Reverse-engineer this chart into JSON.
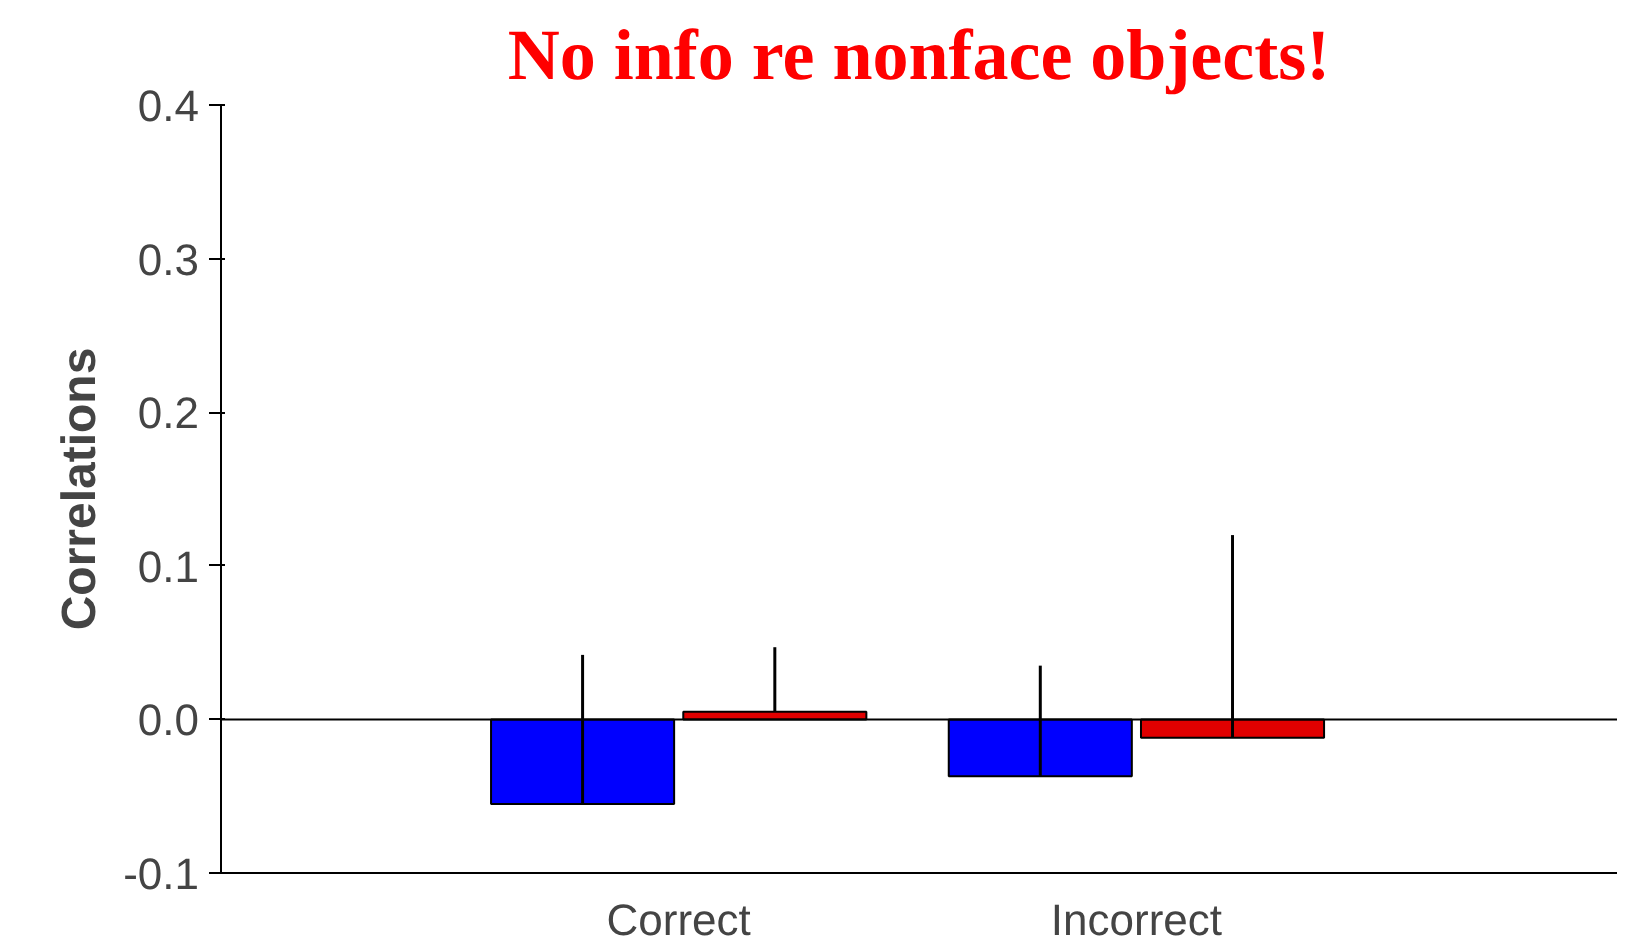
{
  "chart_data": {
    "type": "bar",
    "title": "No info re nonface objects!",
    "ylabel": "Correlations",
    "categories": [
      "Correct",
      "Incorrect"
    ],
    "series": [
      {
        "color": "#0000ff",
        "values": [
          -0.055,
          -0.037
        ],
        "errors": [
          [
            -0.055,
            0.042
          ],
          [
            -0.037,
            0.035
          ]
        ]
      },
      {
        "color": "#e00000",
        "values": [
          0.005,
          -0.012
        ],
        "errors": [
          [
            0.005,
            0.047
          ],
          [
            -0.012,
            0.12
          ]
        ]
      }
    ],
    "ylim": [
      -0.1,
      0.4
    ],
    "yticks": [
      {
        "value": -0.1,
        "label": "-0.1"
      },
      {
        "value": 0,
        "label": "0.0"
      },
      {
        "value": 0.1,
        "label": "0.1"
      },
      {
        "value": 0.2,
        "label": "0.2"
      },
      {
        "value": 0.3,
        "label": "0.3"
      },
      {
        "value": 0.4,
        "label": "0.4"
      }
    ],
    "ref_lines": [
      {
        "axis": "y",
        "value": 0,
        "color": "#000000"
      }
    ],
    "grid": false
  }
}
